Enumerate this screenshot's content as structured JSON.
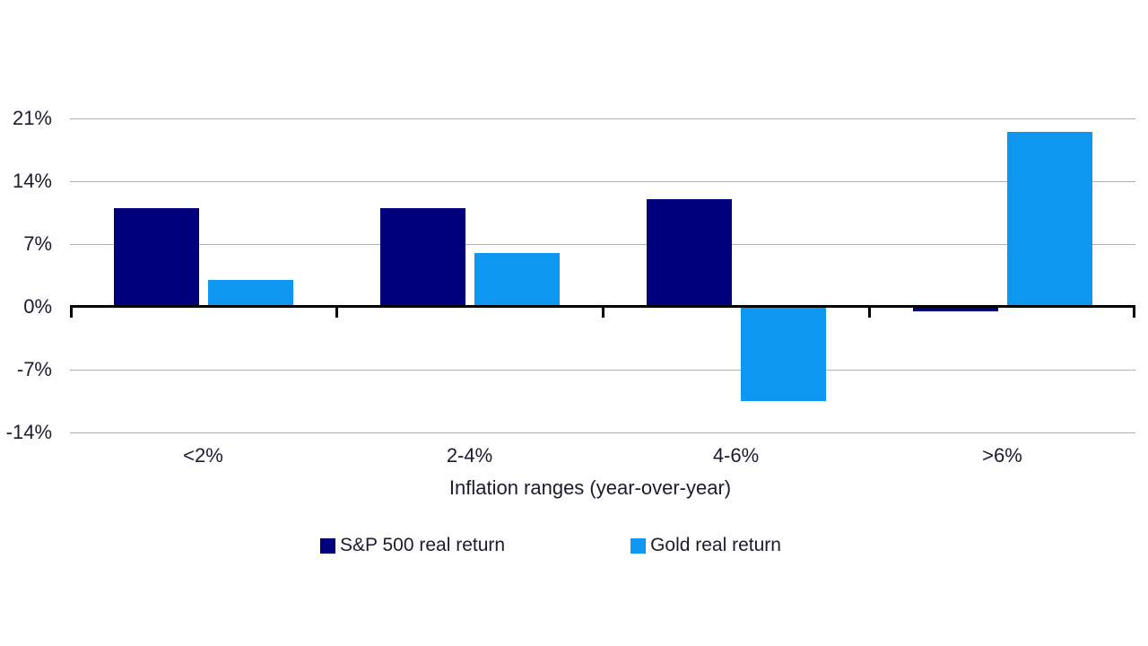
{
  "page": {
    "background": "#ffffff"
  },
  "colors": {
    "axis": "#000000",
    "gridline": "#b0b0b0",
    "text": "#1b1b2f"
  },
  "chart_data": {
    "type": "bar",
    "title": "",
    "categories": [
      "<2%",
      "2-4%",
      "4-6%",
      ">6%"
    ],
    "series": [
      {
        "name": "S&P 500 real return",
        "color": "#00007A",
        "values": [
          11,
          11,
          12,
          -0.5
        ]
      },
      {
        "name": "Gold real return",
        "color": "#0D97F0",
        "values": [
          3,
          6,
          -10.5,
          19.5
        ]
      }
    ],
    "xlabel": "Inflation ranges (year-over-year)",
    "ylabel": "",
    "ylim": [
      -14,
      21
    ],
    "ytick_step": 7,
    "yticks": [
      21,
      14,
      7,
      0,
      -7,
      -14
    ],
    "ytick_labels": [
      "21%",
      "14%",
      "7%",
      "0%",
      "-7%",
      "-14%"
    ],
    "grid": true,
    "legend_position": "bottom",
    "units": "percent"
  }
}
